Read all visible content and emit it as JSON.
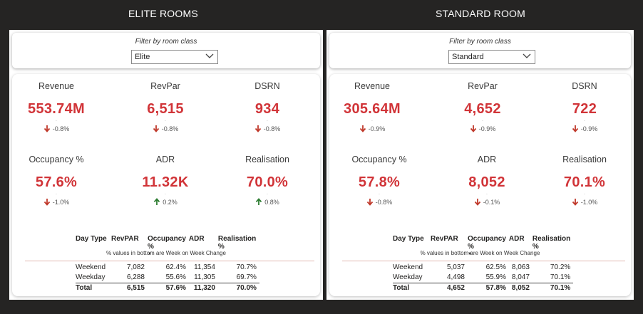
{
  "panels": [
    {
      "heading": "ELITE ROOMS",
      "filter": {
        "label": "Filter by room class",
        "selected": "Elite"
      },
      "kpis": [
        {
          "label": "Revenue",
          "value": "553.74M",
          "change": "-0.8%",
          "direction": "down"
        },
        {
          "label": "RevPar",
          "value": "6,515",
          "change": "-0.8%",
          "direction": "down"
        },
        {
          "label": "DSRN",
          "value": "934",
          "change": "-0.8%",
          "direction": "down"
        },
        {
          "label": "Occupancy %",
          "value": "57.6%",
          "change": "-1.0%",
          "direction": "down"
        },
        {
          "label": "ADR",
          "value": "11.32K",
          "change": "0.2%",
          "direction": "up"
        },
        {
          "label": "Realisation",
          "value": "70.0%",
          "change": "0.8%",
          "direction": "up"
        }
      ],
      "note": "% values in bottom are Week on Week Change",
      "table": {
        "headers": [
          "Day Type",
          "RevPAR",
          "Occupancy %",
          "ADR",
          "Realisation %"
        ],
        "rows": [
          [
            "Weekend",
            "7,082",
            "62.4%",
            "11,354",
            "70.7%"
          ],
          [
            "Weekday",
            "6,288",
            "55.6%",
            "11,305",
            "69.7%"
          ]
        ],
        "total": [
          "Total",
          "6,515",
          "57.6%",
          "11,320",
          "70.0%"
        ]
      }
    },
    {
      "heading": "STANDARD ROOM",
      "filter": {
        "label": "Filter by room class",
        "selected": "Standard"
      },
      "kpis": [
        {
          "label": "Revenue",
          "value": "305.64M",
          "change": "-0.9%",
          "direction": "down"
        },
        {
          "label": "RevPar",
          "value": "4,652",
          "change": "-0.9%",
          "direction": "down"
        },
        {
          "label": "DSRN",
          "value": "722",
          "change": "-0.9%",
          "direction": "down"
        },
        {
          "label": "Occupancy %",
          "value": "57.8%",
          "change": "-0.8%",
          "direction": "down"
        },
        {
          "label": "ADR",
          "value": "8,052",
          "change": "-0.1%",
          "direction": "down"
        },
        {
          "label": "Realisation",
          "value": "70.1%",
          "change": "-1.0%",
          "direction": "down"
        }
      ],
      "note": "% values in bottom are Week on Week Change",
      "table": {
        "headers": [
          "Day Type",
          "RevPAR",
          "Occupancy %",
          "ADR",
          "Realisation %"
        ],
        "rows": [
          [
            "Weekend",
            "5,037",
            "62.5%",
            "8,063",
            "70.2%"
          ],
          [
            "Weekday",
            "4,498",
            "55.9%",
            "8,047",
            "70.1%"
          ]
        ],
        "total": [
          "Total",
          "4,652",
          "57.8%",
          "8,052",
          "70.1%"
        ]
      }
    }
  ],
  "colors": {
    "value_red": "#d13438",
    "arrow_down": "#c0392b",
    "arrow_up": "#2e7d32",
    "background": "#252423"
  },
  "icons": {
    "down": "arrow-down-icon",
    "up": "arrow-up-icon",
    "dropdown": "chevron-down-icon",
    "sort": "sort-desc-icon"
  }
}
